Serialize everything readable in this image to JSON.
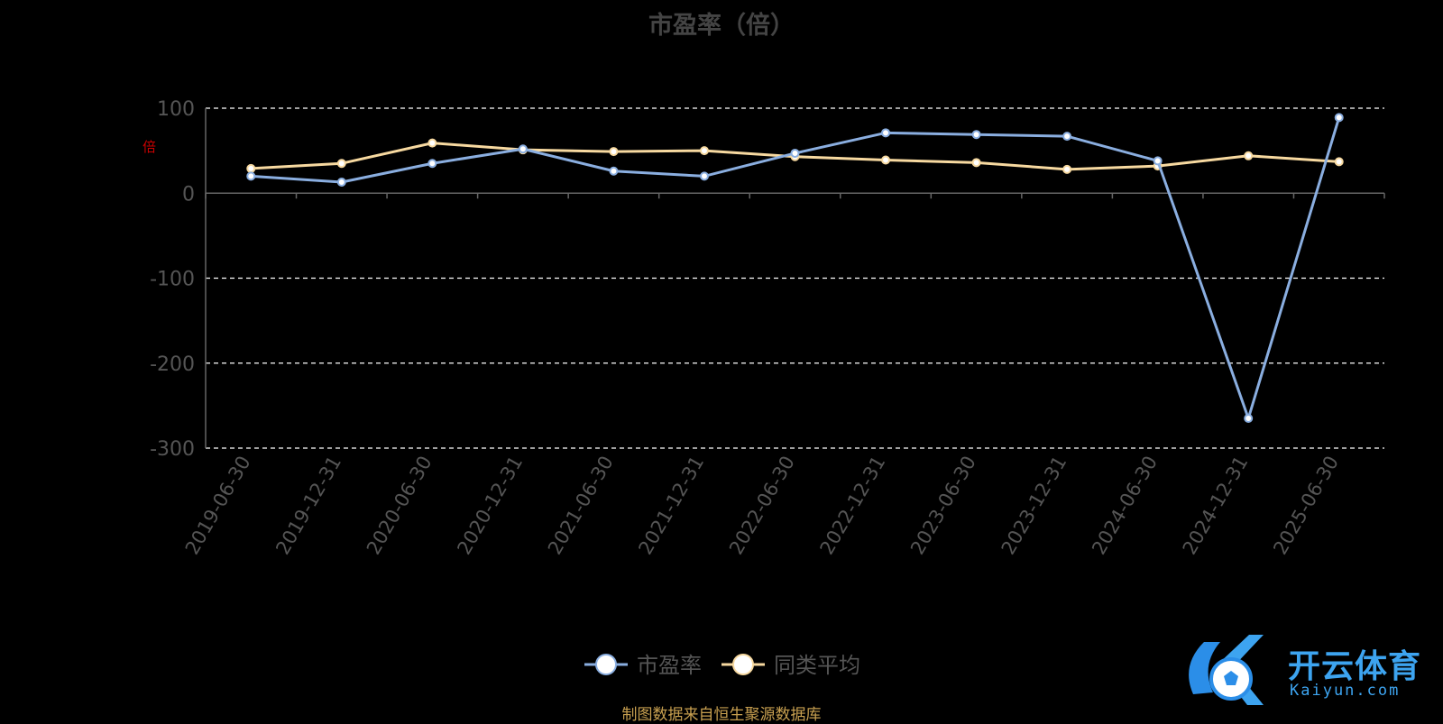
{
  "page": {
    "title": "市盈率（倍）",
    "source": "制图数据来自恒生聚源数据库",
    "watermark_text": "开云体育",
    "watermark_url": "Kaiyun.com",
    "axis_unit_mark": "倍"
  },
  "colors": {
    "background": "#000000",
    "pe_line": "#8aaee0",
    "avg_line": "#f7d9a0",
    "axis": "#666666",
    "grid": "#ffffff",
    "tick_text": "#555555",
    "source_text": "#c8a050",
    "watermark": "#3da4f0"
  },
  "chart_data": {
    "type": "line",
    "title": "市盈率（倍）",
    "ylim": [
      -300,
      100
    ],
    "yticks": [
      "100",
      "0",
      "-100",
      "-200",
      "-300"
    ],
    "categories": [
      "2019-06-30",
      "2019-12-31",
      "2020-06-30",
      "2020-12-31",
      "2021-06-30",
      "2021-12-31",
      "2022-06-30",
      "2022-12-31",
      "2023-06-30",
      "2023-12-31",
      "2024-06-30",
      "2024-12-31",
      "2025-06-30"
    ],
    "grid": true,
    "legend_position": "bottom-center",
    "series": [
      {
        "name": "市盈率",
        "values": [
          20,
          13,
          35,
          52,
          26,
          20,
          47,
          71,
          69,
          67,
          38,
          -265,
          89
        ]
      },
      {
        "name": "同类平均",
        "values": [
          29,
          35,
          59,
          51,
          49,
          50,
          43,
          39,
          36,
          28,
          32,
          44,
          37
        ]
      }
    ]
  }
}
